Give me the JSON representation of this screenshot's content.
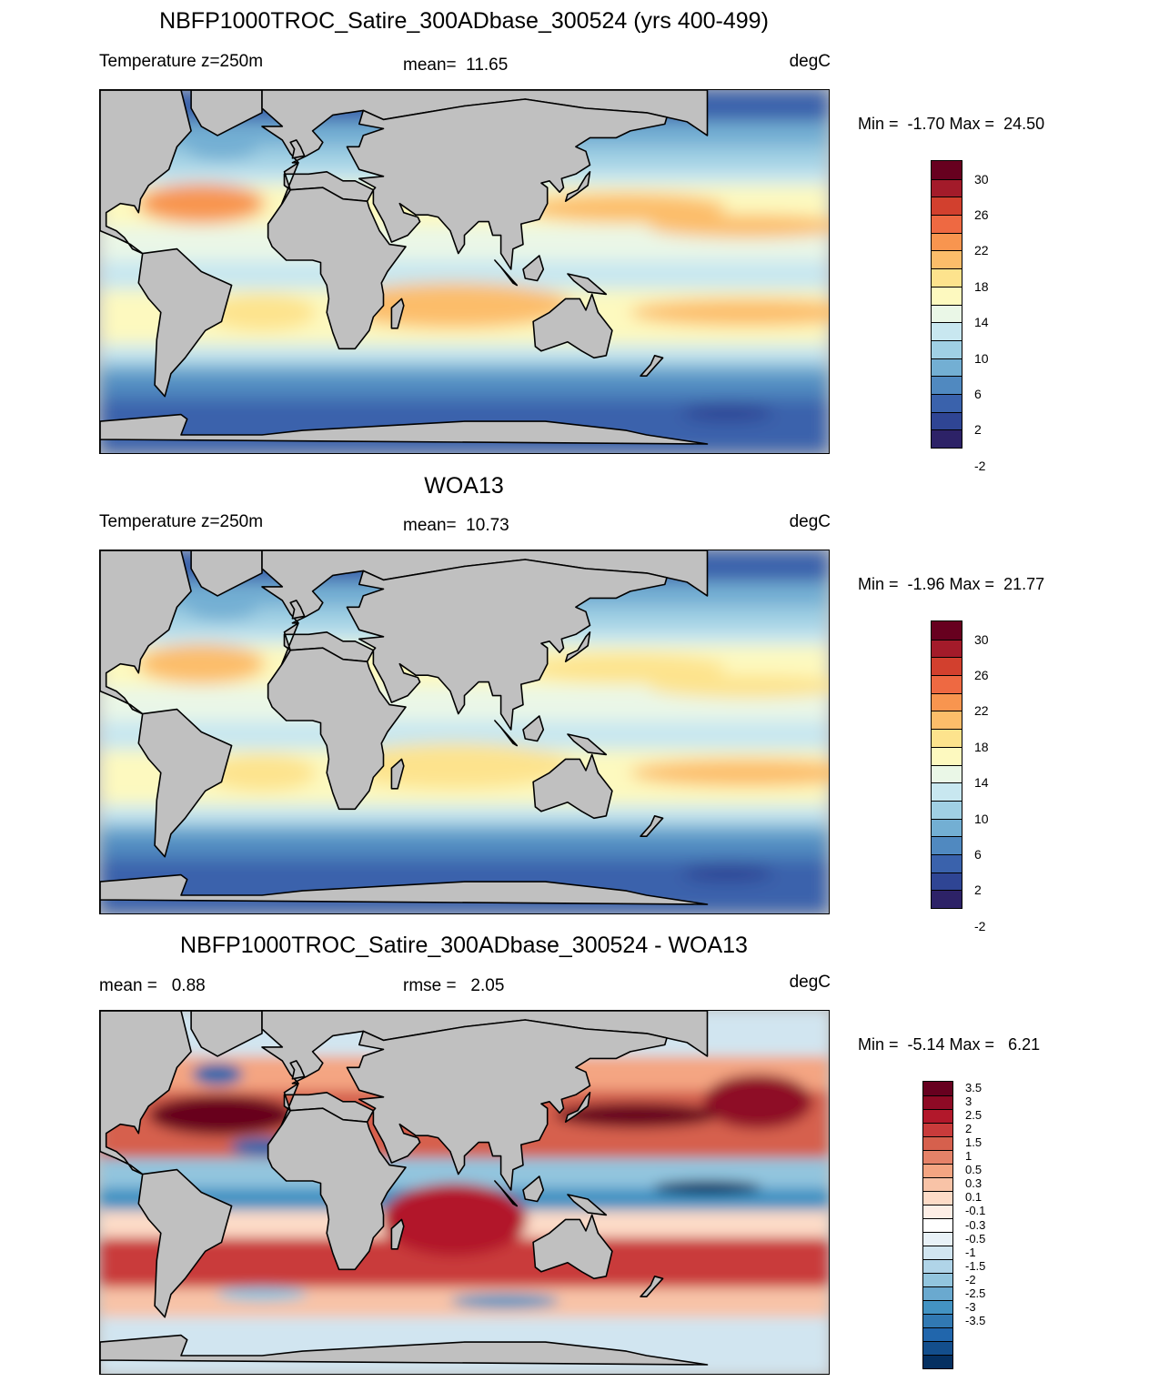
{
  "panels": [
    {
      "title": "NBFP1000TROC_Satire_300ADbase_300524 (yrs 400-499)",
      "left": "Temperature z=250m",
      "center": "mean=  11.65",
      "right": "degC",
      "minmax": "Min =  -1.70 Max =  24.50",
      "field": "model"
    },
    {
      "title": "WOA13",
      "left": "Temperature z=250m",
      "center": "mean=  10.73",
      "right": "degC",
      "minmax": "Min =  -1.96 Max =  21.77",
      "field": "obs"
    },
    {
      "title": "NBFP1000TROC_Satire_300ADbase_300524 - WOA13",
      "left": "mean =   0.88",
      "center": "rmse =   2.05",
      "right": "degC",
      "minmax": "Min =  -5.14 Max =   6.21",
      "field": "diff"
    }
  ],
  "colorbar_temp": {
    "labels": [
      "30",
      "26",
      "22",
      "18",
      "14",
      "10",
      "6",
      "2",
      "-2"
    ],
    "colors": [
      "#67001f",
      "#a31b2a",
      "#d2402e",
      "#ee6942",
      "#f8954f",
      "#fcbd6a",
      "#fde38d",
      "#fdf9bf",
      "#eaf7e7",
      "#c8e7f0",
      "#a0d0e4",
      "#73afd3",
      "#5089c0",
      "#3a62ac",
      "#2f4594",
      "#2d2267"
    ]
  },
  "colorbar_diff": {
    "labels": [
      "3.5",
      "3",
      "2.5",
      "2",
      "1.5",
      "1",
      "0.5",
      "0.3",
      "0.1",
      "-0.1",
      "-0.3",
      "-0.5",
      "-1",
      "-1.5",
      "-2",
      "-2.5",
      "-3",
      "-3.5"
    ],
    "colors": [
      "#67001f",
      "#8e0a25",
      "#b2182b",
      "#c93b3b",
      "#d6604d",
      "#e58268",
      "#f4a582",
      "#f8c3a7",
      "#fddbc7",
      "#fdeee6",
      "#ffffff",
      "#e8f1f7",
      "#d1e5f0",
      "#b0d4e8",
      "#92c5de",
      "#6aa9cf",
      "#4393c3",
      "#3179b3",
      "#2166ac",
      "#134e8c",
      "#053061"
    ]
  },
  "land_color": "#c0c0c0"
}
